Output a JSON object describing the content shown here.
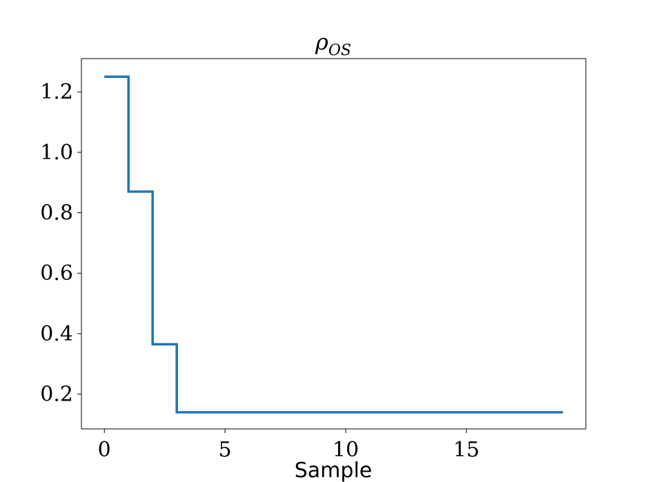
{
  "chart_data": {
    "type": "line",
    "drawstyle": "steps-post",
    "title": {
      "base": "ρ",
      "subscript": "OS"
    },
    "xlabel": "Sample",
    "ylabel": "",
    "xlim": [
      -0.95,
      19.95
    ],
    "ylim": [
      0.085,
      1.31
    ],
    "xticks": [
      0,
      5,
      10,
      15
    ],
    "xtick_labels": [
      "0",
      "5",
      "10",
      "15"
    ],
    "yticks": [
      0.2,
      0.4,
      0.6,
      0.8,
      1.0,
      1.2
    ],
    "ytick_labels": [
      "0.2",
      "0.4",
      "0.6",
      "0.8",
      "1.0",
      "1.2"
    ],
    "grid": false,
    "series": [
      {
        "color": "#1f77b4",
        "x": [
          0,
          1,
          2,
          3,
          4,
          5,
          6,
          7,
          8,
          9,
          10,
          11,
          12,
          13,
          14,
          15,
          16,
          17,
          18,
          19
        ],
        "y": [
          1.25,
          0.87,
          0.365,
          0.14,
          0.14,
          0.14,
          0.14,
          0.14,
          0.14,
          0.14,
          0.14,
          0.14,
          0.14,
          0.14,
          0.14,
          0.14,
          0.14,
          0.14,
          0.14,
          0.14
        ]
      }
    ]
  }
}
